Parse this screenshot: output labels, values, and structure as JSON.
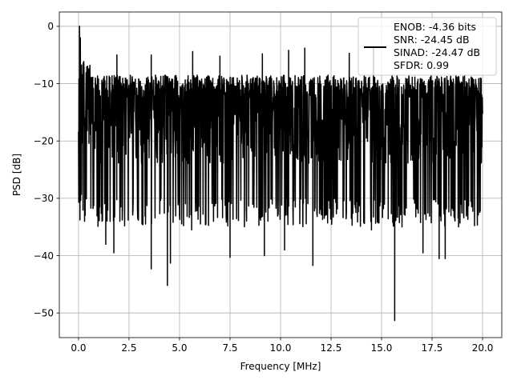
{
  "chart_data": {
    "type": "line",
    "title": "",
    "xlabel": "Frequency [MHz]",
    "ylabel": "PSD [dB]",
    "xlim": [
      -0.95,
      20.95
    ],
    "ylim": [
      -54.3,
      2.5
    ],
    "xticks": [
      0.0,
      2.5,
      5.0,
      7.5,
      10.0,
      12.5,
      15.0,
      17.5,
      20.0
    ],
    "xtick_labels": [
      "0.0",
      "2.5",
      "5.0",
      "7.5",
      "10.0",
      "12.5",
      "15.0",
      "17.5",
      "20.0"
    ],
    "yticks": [
      0,
      -10,
      -20,
      -30,
      -40,
      -50
    ],
    "ytick_labels": [
      "0",
      "−10",
      "−20",
      "−30",
      "−40",
      "−50"
    ],
    "grid": true,
    "legend_position": "top-right",
    "series": [
      {
        "name": "ENOB: -4.36 bits\nSNR: -24.45 dB\nSINAD: -24.47 dB\nSFDR: 0.99",
        "color": "#000000",
        "peak": {
          "x": 0.05,
          "y": 0.0
        },
        "floor_band_y": [
          -30.0,
          -8.5
        ],
        "notable_minima": [
          {
            "x": 0.3,
            "y": -34.0
          },
          {
            "x": 1.35,
            "y": -38.0
          },
          {
            "x": 1.75,
            "y": -39.5
          },
          {
            "x": 3.6,
            "y": -42.3
          },
          {
            "x": 4.4,
            "y": -45.2
          },
          {
            "x": 4.55,
            "y": -41.3
          },
          {
            "x": 5.6,
            "y": -35.5
          },
          {
            "x": 7.5,
            "y": -40.3
          },
          {
            "x": 9.2,
            "y": -40.0
          },
          {
            "x": 10.2,
            "y": -39.0
          },
          {
            "x": 11.6,
            "y": -41.7
          },
          {
            "x": 14.5,
            "y": -35.5
          },
          {
            "x": 15.65,
            "y": -51.3
          },
          {
            "x": 17.05,
            "y": -39.5
          },
          {
            "x": 17.85,
            "y": -40.5
          },
          {
            "x": 18.15,
            "y": -40.5
          }
        ],
        "notable_maxima": [
          {
            "x": 1.9,
            "y": -5.0
          },
          {
            "x": 3.6,
            "y": -5.0
          },
          {
            "x": 5.65,
            "y": -4.4
          },
          {
            "x": 7.0,
            "y": -5.2
          },
          {
            "x": 9.1,
            "y": -4.8
          },
          {
            "x": 10.4,
            "y": -4.2
          },
          {
            "x": 11.2,
            "y": -3.8
          },
          {
            "x": 13.4,
            "y": -4.7
          },
          {
            "x": 14.6,
            "y": -3.5
          }
        ]
      }
    ]
  }
}
